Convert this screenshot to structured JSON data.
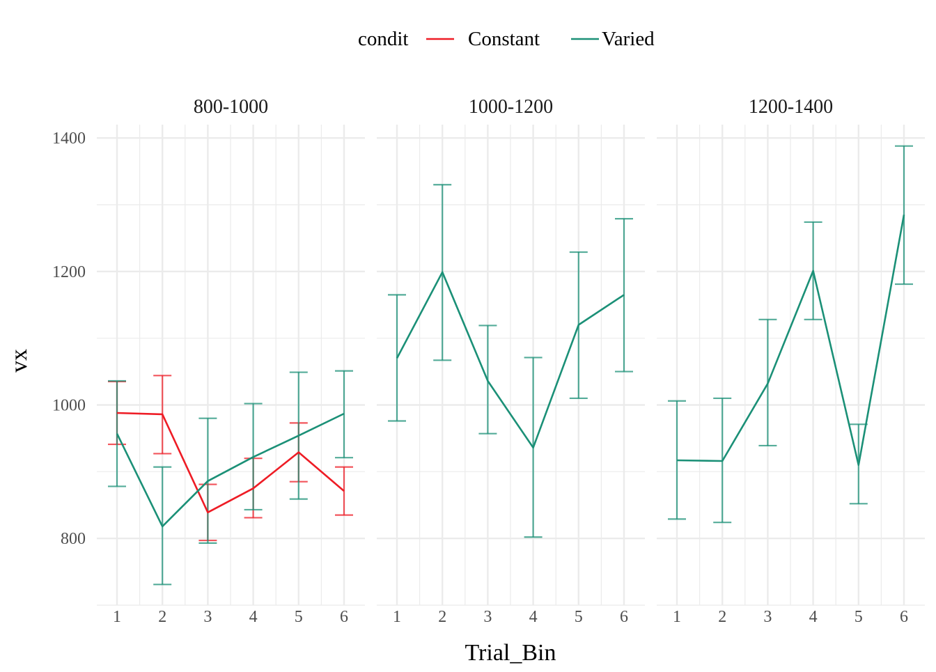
{
  "chart_data": {
    "type": "line",
    "facet_variable": "",
    "facets": [
      "800-1000",
      "1000-1200",
      "1200-1400"
    ],
    "xlabel": "Trial_Bin",
    "ylabel": "vx",
    "x": [
      1,
      2,
      3,
      4,
      5,
      6
    ],
    "ylim": [
      700,
      1420
    ],
    "y_ticks": [
      800,
      1000,
      1200,
      1400
    ],
    "grid": true,
    "legend": {
      "title": "condit",
      "position": "top",
      "entries": [
        "Constant",
        "Varied"
      ]
    },
    "colors": {
      "Constant": "#ee1c25",
      "Varied": "#1b9077",
      "grid": "#ebebeb"
    },
    "panels": [
      {
        "facet": "800-1000",
        "series": [
          {
            "name": "Constant",
            "y": [
              988,
              986,
              839,
              875,
              929,
              871
            ],
            "lo": [
              941,
              927,
              797,
              831,
              885,
              835
            ],
            "hi": [
              1035,
              1044,
              881,
              920,
              973,
              907
            ]
          },
          {
            "name": "Varied",
            "y": [
              957,
              818,
              886,
              922,
              954,
              987
            ],
            "lo": [
              878,
              731,
              793,
              843,
              859,
              921
            ],
            "hi": [
              1036,
              907,
              980,
              1002,
              1049,
              1051
            ]
          }
        ]
      },
      {
        "facet": "1000-1200",
        "series": [
          {
            "name": "Varied",
            "y": [
              1070,
              1199,
              1036,
              936,
              1120,
              1165
            ],
            "lo": [
              976,
              1067,
              957,
              802,
              1010,
              1050
            ],
            "hi": [
              1165,
              1330,
              1119,
              1071,
              1229,
              1279
            ]
          }
        ]
      },
      {
        "facet": "1200-1400",
        "series": [
          {
            "name": "Varied",
            "y": [
              917,
              916,
              1032,
              1201,
              910,
              1285
            ],
            "lo": [
              829,
              824,
              939,
              1128,
              852,
              1181
            ],
            "hi": [
              1006,
              1010,
              1128,
              1274,
              971,
              1388
            ]
          }
        ]
      }
    ]
  }
}
